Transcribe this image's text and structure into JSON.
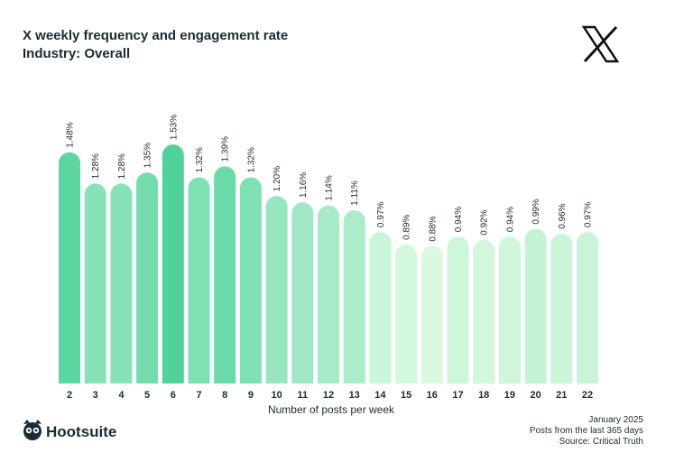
{
  "chart_data": {
    "type": "bar",
    "title": "X weekly frequency and engagement rate",
    "subtitle": "Industry: Overall",
    "x_label": "Number of posts per week",
    "categories": [
      "2",
      "3",
      "4",
      "5",
      "6",
      "7",
      "8",
      "9",
      "10",
      "11",
      "12",
      "13",
      "14",
      "15",
      "16",
      "17",
      "18",
      "19",
      "20",
      "21",
      "22"
    ],
    "values": [
      1.48,
      1.28,
      1.28,
      1.35,
      1.53,
      1.32,
      1.39,
      1.32,
      1.2,
      1.16,
      1.14,
      1.11,
      0.97,
      0.89,
      0.88,
      0.94,
      0.92,
      0.94,
      0.99,
      0.96,
      0.97
    ],
    "value_labels": [
      "1.48%",
      "1.28%",
      "1.28%",
      "1.35%",
      "1.53%",
      "1.32%",
      "1.39%",
      "1.32%",
      "1.20%",
      "1.16%",
      "1.14%",
      "1.11%",
      "0.97%",
      "0.89%",
      "0.88%",
      "0.94%",
      "0.92%",
      "0.94%",
      "0.99%",
      "0.96%",
      "0.97%"
    ],
    "colors": [
      "#5cd6a0",
      "#88e2b8",
      "#88e2b8",
      "#74ddae",
      "#4fd39a",
      "#7fe0b3",
      "#6bdaa8",
      "#7fe0b3",
      "#98e6c0",
      "#a0e8c5",
      "#a6eac8",
      "#abecca",
      "#c9f5d8",
      "#d4f8de",
      "#d8f9e0",
      "#cdf6da",
      "#d1f7dc",
      "#cdf6da",
      "#c3f3d4",
      "#caf5d8",
      "#c8f4d7"
    ],
    "ylim": [
      0,
      1.6
    ],
    "notes": [
      "January 2025",
      "Posts from the last 365 days",
      "Source: Critical Truth"
    ],
    "brand": "Hootsuite"
  }
}
